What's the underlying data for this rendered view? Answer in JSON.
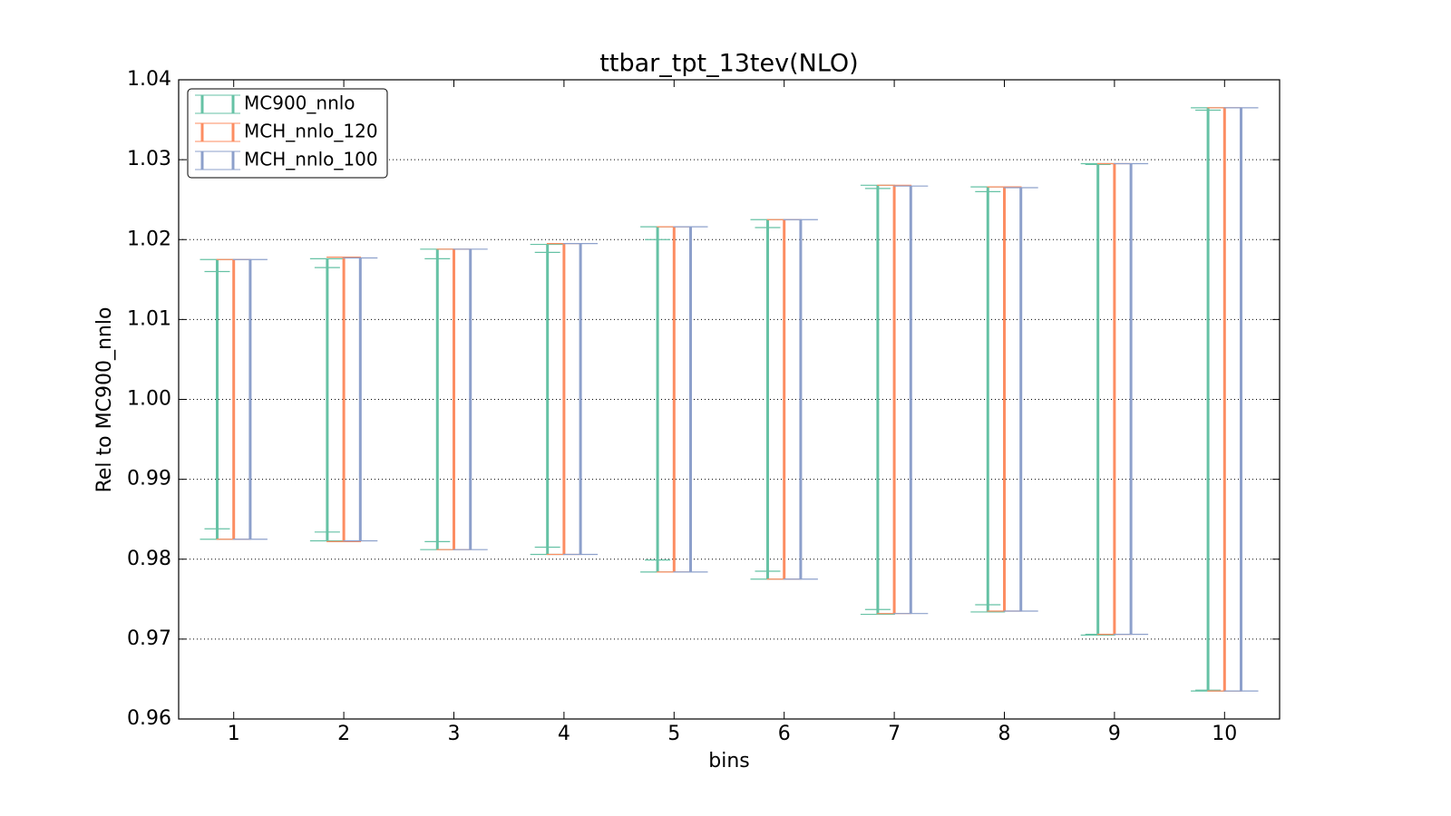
{
  "chart_data": {
    "type": "errorbar",
    "title": "ttbar_tpt_13tev(NLO)",
    "x_label": "bins",
    "y_label": "Rel to MC900_nnlo",
    "x": [
      1,
      2,
      3,
      4,
      5,
      6,
      7,
      8,
      9,
      10
    ],
    "xlim": [
      0.5,
      10.5
    ],
    "xticks": [
      1,
      2,
      3,
      4,
      5,
      6,
      7,
      8,
      9,
      10
    ],
    "ylim": [
      0.96,
      1.04
    ],
    "yticks": [
      0.96,
      0.97,
      0.98,
      0.99,
      {
        "value": 1,
        "label": "1.00"
      },
      1.01,
      1.02,
      1.03,
      1.04
    ],
    "grid": "y",
    "legend": "upper-left",
    "series": [
      {
        "name": "MC900_nnlo",
        "color": "#66c2a5",
        "offset": -0.15,
        "lower": [
          0.9825,
          0.9823,
          0.9812,
          0.9806,
          0.9784,
          0.9775,
          0.9731,
          0.9734,
          0.9705,
          0.9635
        ],
        "upper": [
          1.0175,
          1.0176,
          1.0188,
          1.0194,
          1.0216,
          1.0225,
          1.0268,
          1.0266,
          1.0295,
          1.0365
        ],
        "inner_lower": [
          0.9838,
          0.9834,
          0.9822,
          0.9815,
          0.9799,
          0.9785,
          0.9737,
          0.9743,
          0.9706,
          0.9636
        ],
        "inner_upper": [
          1.016,
          1.0165,
          1.0176,
          1.0184,
          1.02,
          1.0215,
          1.0264,
          1.026,
          1.0294,
          1.0362
        ]
      },
      {
        "name": "MCH_nnlo_120",
        "color": "#fc8d62",
        "offset": 0,
        "lower": [
          0.9825,
          0.9822,
          0.9812,
          0.9806,
          0.9784,
          0.9775,
          0.9732,
          0.9735,
          0.9706,
          0.9635
        ],
        "upper": [
          1.0175,
          1.0178,
          1.0188,
          1.0195,
          1.0216,
          1.0225,
          1.0268,
          1.0266,
          1.0295,
          1.0365
        ]
      },
      {
        "name": "MCH_nnlo_100",
        "color": "#8da0cb",
        "offset": 0.15,
        "lower": [
          0.9825,
          0.9823,
          0.9812,
          0.9806,
          0.9784,
          0.9775,
          0.9732,
          0.9735,
          0.9706,
          0.9635
        ],
        "upper": [
          1.0175,
          1.0177,
          1.0188,
          1.0195,
          1.0216,
          1.0225,
          1.0267,
          1.0265,
          1.0295,
          1.0365
        ]
      }
    ]
  }
}
